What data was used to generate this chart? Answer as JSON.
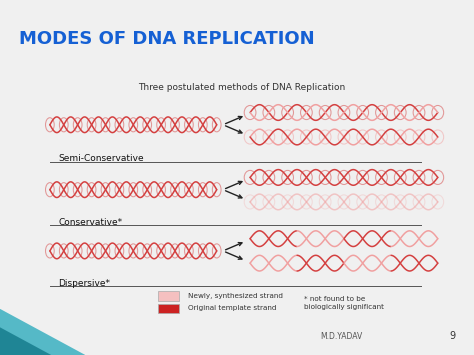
{
  "title": "MODES OF DNA REPLICATION",
  "title_color": "#1560d4",
  "title_fontsize": 13,
  "subtitle": "Three postulated methods of DNA Replication",
  "subtitle_fontsize": 6.5,
  "bg_outer": "#f0f0f0",
  "bg_title": "#ffffff",
  "bg_box": "#f8f8f5",
  "box_edge": "#aaaaaa",
  "methods": [
    "Semi-Conservative",
    "Conservative*",
    "Dispersive*"
  ],
  "method_fontsize": 6.5,
  "dna_orig": "#d44040",
  "dna_new_light": "#f0a0a0",
  "dna_new_semi": "#e8b0b0",
  "footer_text": "M.D.YADAV",
  "page_number": "9",
  "note_text": "* not found to be\nbiologically significant",
  "legend_newly_label": "Newly, synthesized strand",
  "legend_orig_label": "Original template strand",
  "legend_newly_color": "#f5c0c0",
  "legend_orig_color": "#cc2222"
}
